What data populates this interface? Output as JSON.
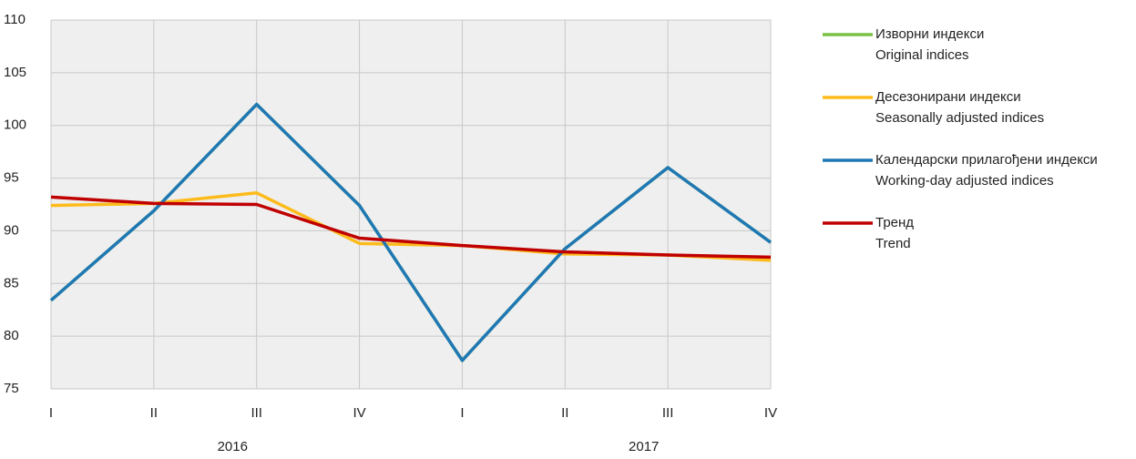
{
  "chart_data": {
    "type": "line",
    "categories": [
      "I",
      "II",
      "III",
      "IV",
      "I",
      "II",
      "III",
      "IV"
    ],
    "x_groups": [
      "2016",
      "2017"
    ],
    "series": [
      {
        "name": "Изворни индекси",
        "name_en": "Original indices",
        "color": "#7ac143",
        "values": [
          83.4,
          91.9,
          102.0,
          92.4,
          77.7,
          88.3,
          96.0,
          88.9
        ]
      },
      {
        "name": "Десезонирани индекси",
        "name_en": "Seasonally adjusted indices",
        "color": "#fdbb1b",
        "values": [
          92.4,
          92.6,
          93.6,
          88.8,
          88.6,
          87.8,
          87.7,
          87.2
        ]
      },
      {
        "name": "Календарски прилагођени индекси",
        "name_en": "Working-day adjusted indices",
        "color": "#1f78b4",
        "values": [
          83.4,
          91.9,
          102.0,
          92.4,
          77.7,
          88.3,
          96.0,
          88.9
        ]
      },
      {
        "name": "Тренд",
        "name_en": "Trend",
        "color": "#c00000",
        "values": [
          93.2,
          92.6,
          92.5,
          89.3,
          88.6,
          88.0,
          87.7,
          87.5
        ]
      }
    ],
    "ylim": [
      75,
      110
    ],
    "yticks": [
      75,
      80,
      85,
      90,
      95,
      100,
      105,
      110
    ],
    "grid": true,
    "legend": "right"
  }
}
